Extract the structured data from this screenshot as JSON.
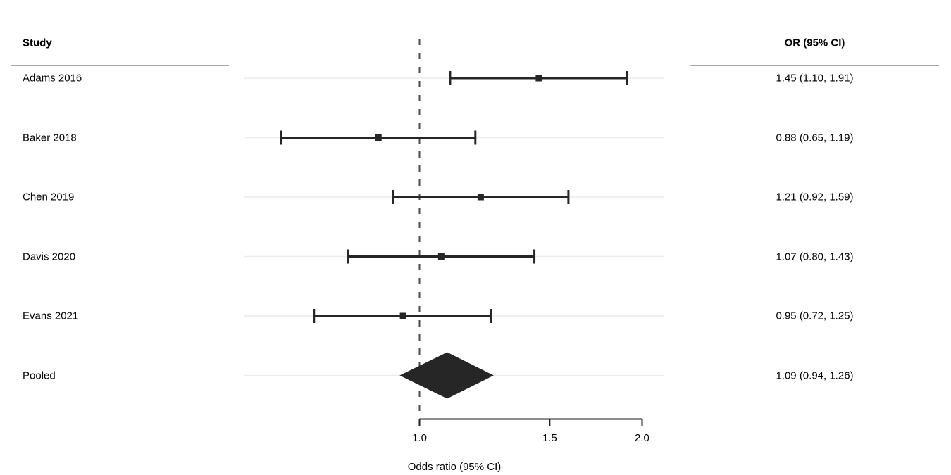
{
  "header": {
    "study_col": "Study",
    "or_col": "OR (95% CI)"
  },
  "chart_data": {
    "type": "forest",
    "x_axis": {
      "label": "Odds ratio (95% CI)",
      "scale": "log10",
      "ticks": [
        1.0,
        1.5,
        2.0
      ],
      "tick_labels": [
        "1.0",
        "1.5",
        "2.0"
      ],
      "reference_line": 1.0
    },
    "studies": [
      {
        "label": "Adams 2016",
        "or": 1.45,
        "ci_low": 1.1,
        "ci_high": 1.91,
        "or_text": "1.45 (1.10, 1.91)"
      },
      {
        "label": "Baker 2018",
        "or": 0.88,
        "ci_low": 0.65,
        "ci_high": 1.19,
        "or_text": "0.88 (0.65, 1.19)"
      },
      {
        "label": "Chen 2019",
        "or": 1.21,
        "ci_low": 0.92,
        "ci_high": 1.59,
        "or_text": "1.21 (0.92, 1.59)"
      },
      {
        "label": "Davis 2020",
        "or": 1.07,
        "ci_low": 0.8,
        "ci_high": 1.43,
        "or_text": "1.07 (0.80, 1.43)"
      },
      {
        "label": "Evans 2021",
        "or": 0.95,
        "ci_low": 0.72,
        "ci_high": 1.25,
        "or_text": "0.95 (0.72, 1.25)"
      }
    ],
    "pooled": {
      "label": "Pooled",
      "or": 1.09,
      "ci_low": 0.94,
      "ci_high": 1.26,
      "or_text": "1.09 (0.94, 1.26)"
    }
  },
  "colors": {
    "marker": "#262626",
    "diamond": "#262626",
    "gridline": "#ececec",
    "reference_line": "#4a4a4a",
    "header_rule": "#a8a8a8",
    "axis": "#1f1f1f",
    "text": "#000000"
  }
}
